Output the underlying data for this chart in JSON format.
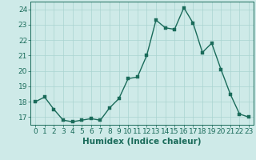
{
  "x": [
    0,
    1,
    2,
    3,
    4,
    5,
    6,
    7,
    8,
    9,
    10,
    11,
    12,
    13,
    14,
    15,
    16,
    17,
    18,
    19,
    20,
    21,
    22,
    23
  ],
  "y": [
    18.0,
    18.3,
    17.5,
    16.8,
    16.7,
    16.8,
    16.9,
    16.8,
    17.6,
    18.2,
    19.5,
    19.6,
    21.0,
    23.3,
    22.8,
    22.7,
    24.1,
    23.1,
    21.2,
    21.8,
    20.1,
    18.5,
    17.2,
    17.0
  ],
  "line_color": "#1a6b5a",
  "marker_color": "#1a6b5a",
  "bg_color": "#ceeae8",
  "grid_color": "#aad4d0",
  "xlabel": "Humidex (Indice chaleur)",
  "xlim": [
    -0.5,
    23.5
  ],
  "ylim": [
    16.5,
    24.5
  ],
  "yticks": [
    17,
    18,
    19,
    20,
    21,
    22,
    23,
    24
  ],
  "xticks": [
    0,
    1,
    2,
    3,
    4,
    5,
    6,
    7,
    8,
    9,
    10,
    11,
    12,
    13,
    14,
    15,
    16,
    17,
    18,
    19,
    20,
    21,
    22,
    23
  ],
  "tick_fontsize": 6.5,
  "label_fontsize": 7.5,
  "marker_size": 2.5,
  "line_width": 1.0
}
